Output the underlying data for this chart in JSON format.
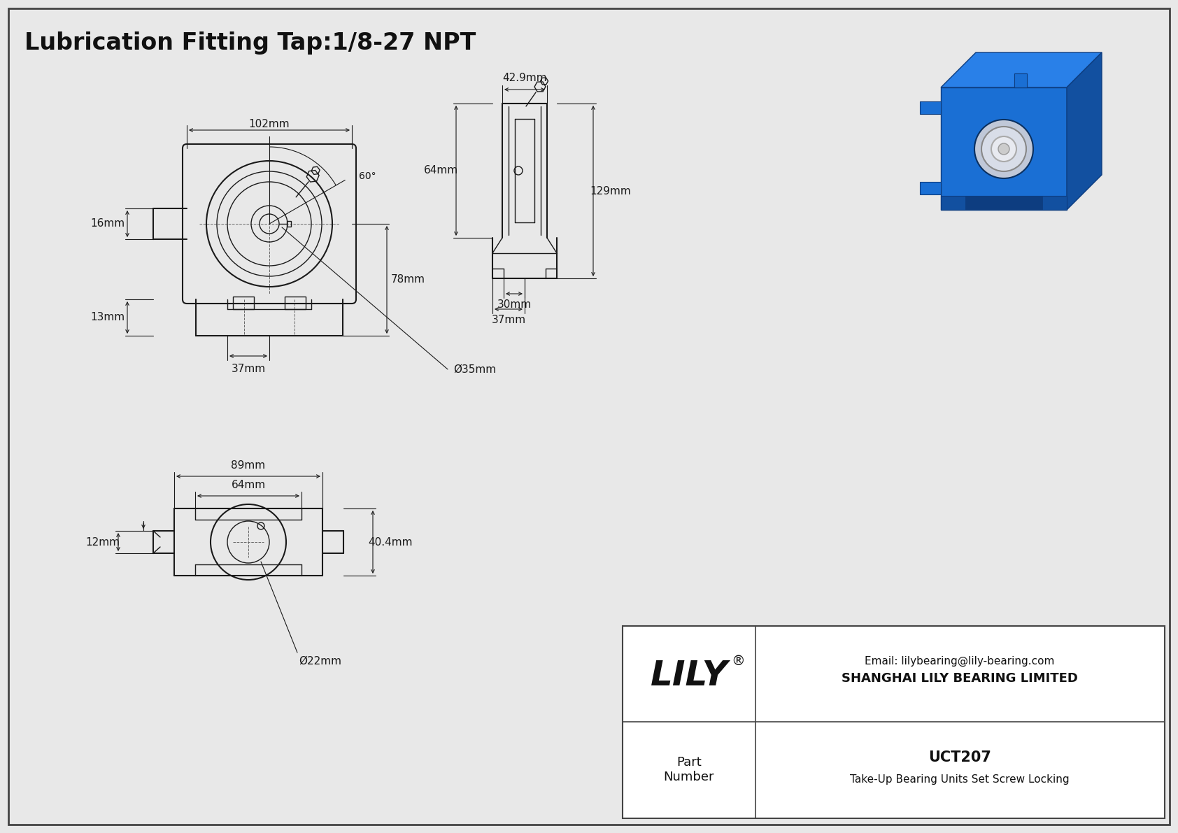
{
  "title": "Lubrication Fitting Tap:1/8-27 NPT",
  "bg_color": "#e8e8e8",
  "line_color": "#1a1a1a",
  "dim_color": "#1a1a1a",
  "border_color": "#444444",
  "dimensions": {
    "top_width": "102mm",
    "angle": "60°",
    "height_right": "78mm",
    "height_left": "16mm",
    "height_bottom_left": "13mm",
    "bore_width": "37mm",
    "bore_dia": "Ø35mm",
    "side_width": "42.9mm",
    "side_height1": "64mm",
    "side_height2": "129mm",
    "side_base_w1": "30mm",
    "side_base_w2": "37mm",
    "bottom_w1": "89mm",
    "bottom_w2": "64mm",
    "bottom_h": "40.4mm",
    "bottom_left": "12mm",
    "bottom_dia": "Ø22mm"
  },
  "title_box": {
    "company": "SHANGHAI LILY BEARING LIMITED",
    "email": "Email: lilybearing@lily-bearing.com",
    "brand": "LILY",
    "trademark": "®",
    "part_label": "Part\nNumber",
    "part_number": "UCT207",
    "part_desc": "Take-Up Bearing Units Set Screw Locking"
  }
}
